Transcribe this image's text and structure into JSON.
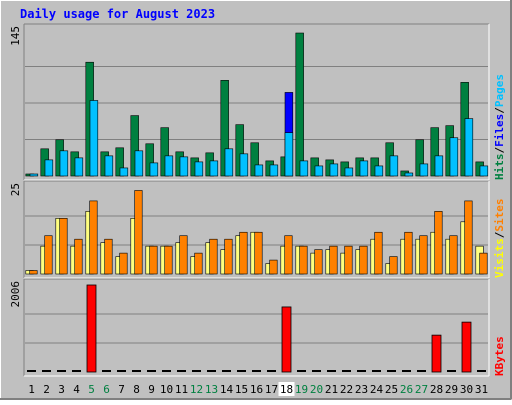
{
  "chart_data": {
    "type": "bar",
    "title": "Daily usage for August 2023",
    "days": [
      "1",
      "2",
      "3",
      "4",
      "5",
      "6",
      "7",
      "8",
      "9",
      "10",
      "11",
      "12",
      "13",
      "14",
      "15",
      "16",
      "17",
      "18",
      "19",
      "20",
      "21",
      "22",
      "23",
      "24",
      "25",
      "26",
      "27",
      "28",
      "29",
      "30",
      "31"
    ],
    "weekend_days": [
      "5",
      "6",
      "12",
      "13",
      "19",
      "20",
      "26",
      "27"
    ],
    "highlighted_day": "18",
    "panels": [
      {
        "name": "hits-files-pages",
        "ymax_label": "145",
        "ymax": 145,
        "right_labels": [
          {
            "text": "Hits",
            "color": "#008040"
          },
          {
            "text": "/",
            "color": "#000000"
          },
          {
            "text": "Files",
            "color": "#0000ff"
          },
          {
            "text": "/",
            "color": "#000000"
          },
          {
            "text": "Pages",
            "color": "#00c0ff"
          }
        ],
        "series": [
          {
            "name": "Hits",
            "color": "#008040",
            "values": [
              2,
              27,
              36,
              24,
              113,
              24,
              28,
              60,
              32,
              48,
              24,
              18,
              23,
              95,
              51,
              33,
              15,
              19,
              142,
              18,
              16,
              14,
              18,
              18,
              33,
              5,
              36,
              48,
              50,
              93,
              14
            ]
          },
          {
            "name": "Files",
            "color": "#0000ff",
            "values": [
              2,
              16,
              25,
              18,
              75,
              20,
              8,
              25,
              13,
              20,
              19,
              14,
              15,
              27,
              22,
              11,
              11,
              83,
              15,
              10,
              12,
              8,
              15,
              10,
              20,
              3,
              12,
              20,
              38,
              57,
              10
            ]
          },
          {
            "name": "Pages",
            "color": "#00c0ff",
            "values": [
              2,
              16,
              25,
              18,
              75,
              20,
              8,
              25,
              13,
              20,
              19,
              14,
              15,
              27,
              22,
              11,
              11,
              43,
              15,
              10,
              12,
              8,
              15,
              10,
              20,
              3,
              12,
              20,
              38,
              57,
              10
            ]
          }
        ]
      },
      {
        "name": "visits-sites",
        "ymax_label": "25",
        "ymax": 25,
        "right_labels": [
          {
            "text": "Visits",
            "color": "#ffff00"
          },
          {
            "text": "/",
            "color": "#000000"
          },
          {
            "text": "Sites",
            "color": "#ff8000"
          }
        ],
        "series": [
          {
            "name": "Visits",
            "color": "#ffff80",
            "values": [
              1,
              8,
              16,
              8,
              18,
              9,
              5,
              16,
              8,
              8,
              9,
              5,
              9,
              7,
              11,
              12,
              3,
              8,
              8,
              6,
              7,
              6,
              7,
              10,
              3,
              10,
              10,
              12,
              10,
              15,
              8
            ]
          },
          {
            "name": "Sites",
            "color": "#ff8000",
            "values": [
              1,
              11,
              16,
              10,
              21,
              10,
              6,
              24,
              8,
              8,
              11,
              6,
              10,
              10,
              12,
              12,
              4,
              11,
              8,
              7,
              8,
              8,
              8,
              12,
              5,
              12,
              11,
              18,
              11,
              21,
              6
            ]
          }
        ]
      },
      {
        "name": "kbytes",
        "ymax_label": "2006",
        "ymax": 2006,
        "right_labels": [
          {
            "text": "KBytes",
            "color": "#ff0000"
          }
        ],
        "series": [
          {
            "name": "KBytes",
            "color": "#ff0000",
            "values": [
              0,
              0,
              0,
              0,
              2006,
              0,
              0,
              0,
              0,
              0,
              0,
              0,
              0,
              0,
              0,
              0,
              0,
              1500,
              0,
              0,
              0,
              0,
              0,
              0,
              0,
              0,
              0,
              850,
              0,
              1150,
              0
            ]
          }
        ]
      }
    ]
  }
}
